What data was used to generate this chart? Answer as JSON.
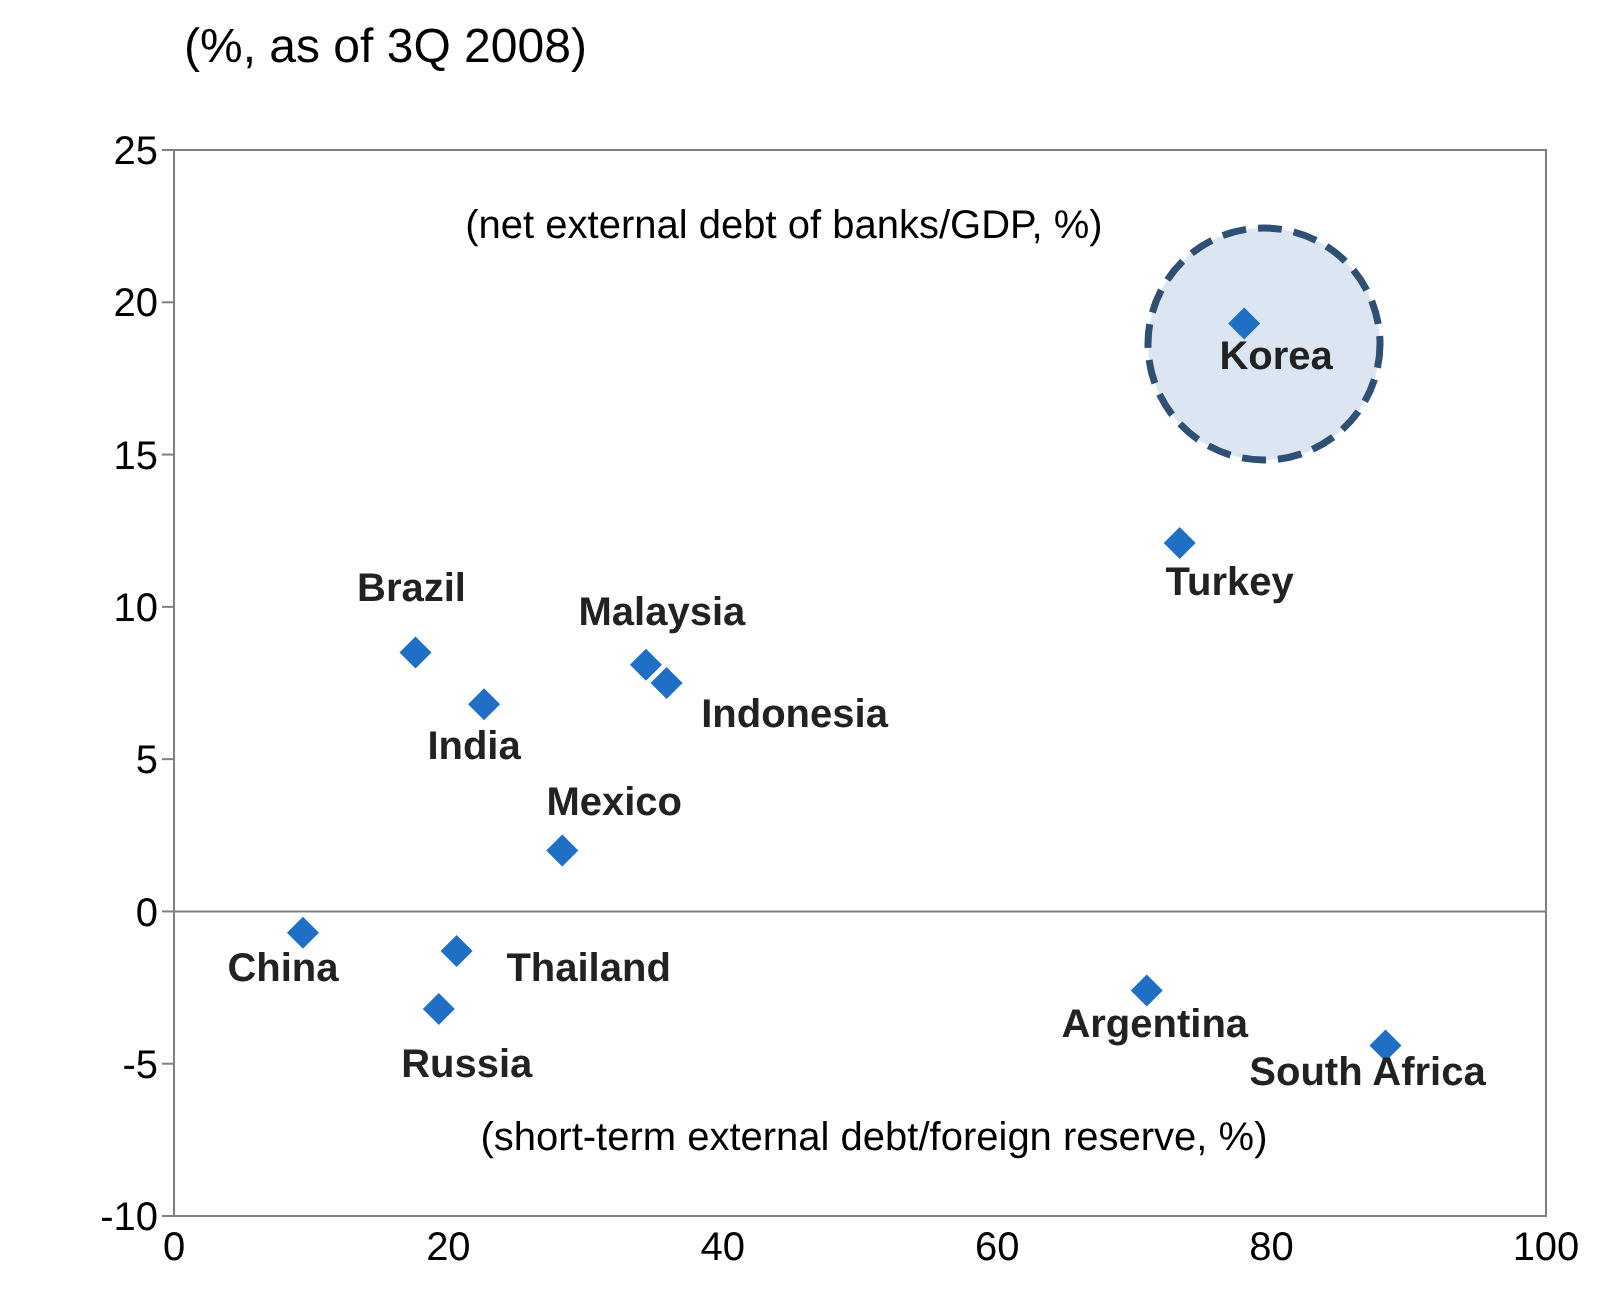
{
  "chart_data": {
    "type": "scatter",
    "title": "(%, as of 3Q 2008)",
    "xlabel": "(short-term external debt/foreign reserve, %)",
    "ylabel": "(net external debt of banks/GDP, %)",
    "series": [
      {
        "color": "#1f6fc5",
        "x": [
          78,
          73.3,
          17.6,
          22.6,
          34.4,
          35.9,
          28.3,
          9.4,
          20.6,
          19.3,
          70.9,
          88.3
        ],
        "values": [
          19.3,
          12.1,
          8.5,
          6.8,
          8.1,
          7.5,
          2.0,
          -0.7,
          -1.3,
          -3.2,
          -2.6,
          -4.4
        ]
      }
    ],
    "annotations": [
      {
        "text": "Korea",
        "x": 78,
        "y": 19.3
      },
      {
        "text": "Turkey",
        "x": 73.3,
        "y": 12.1
      },
      {
        "text": "Brazil",
        "x": 17.6,
        "y": 8.5
      },
      {
        "text": "India",
        "x": 22.6,
        "y": 6.8
      },
      {
        "text": "Malaysia",
        "x": 34.4,
        "y": 8.1
      },
      {
        "text": "Indonesia",
        "x": 35.9,
        "y": 7.5
      },
      {
        "text": "Mexico",
        "x": 28.3,
        "y": 2.0
      },
      {
        "text": "China",
        "x": 9.4,
        "y": -0.7
      },
      {
        "text": "Thailand",
        "x": 20.6,
        "y": -1.3
      },
      {
        "text": "Russia",
        "x": 19.3,
        "y": -3.2
      },
      {
        "text": "Argentina",
        "x": 70.9,
        "y": -2.6
      },
      {
        "text": "South Africa",
        "x": 88.3,
        "y": -4.4
      }
    ],
    "xlim": [
      0,
      100
    ],
    "xticks": [
      0,
      20,
      40,
      60,
      80,
      100
    ],
    "ylim": [
      -10,
      25
    ],
    "yticks": [
      -10,
      -5,
      0,
      5,
      10,
      15,
      20,
      25
    ],
    "ref_lines": [
      {
        "axis": "y",
        "value": 0,
        "color": "#808080"
      }
    ],
    "marker": "diamond",
    "grid": false,
    "legend": false
  }
}
